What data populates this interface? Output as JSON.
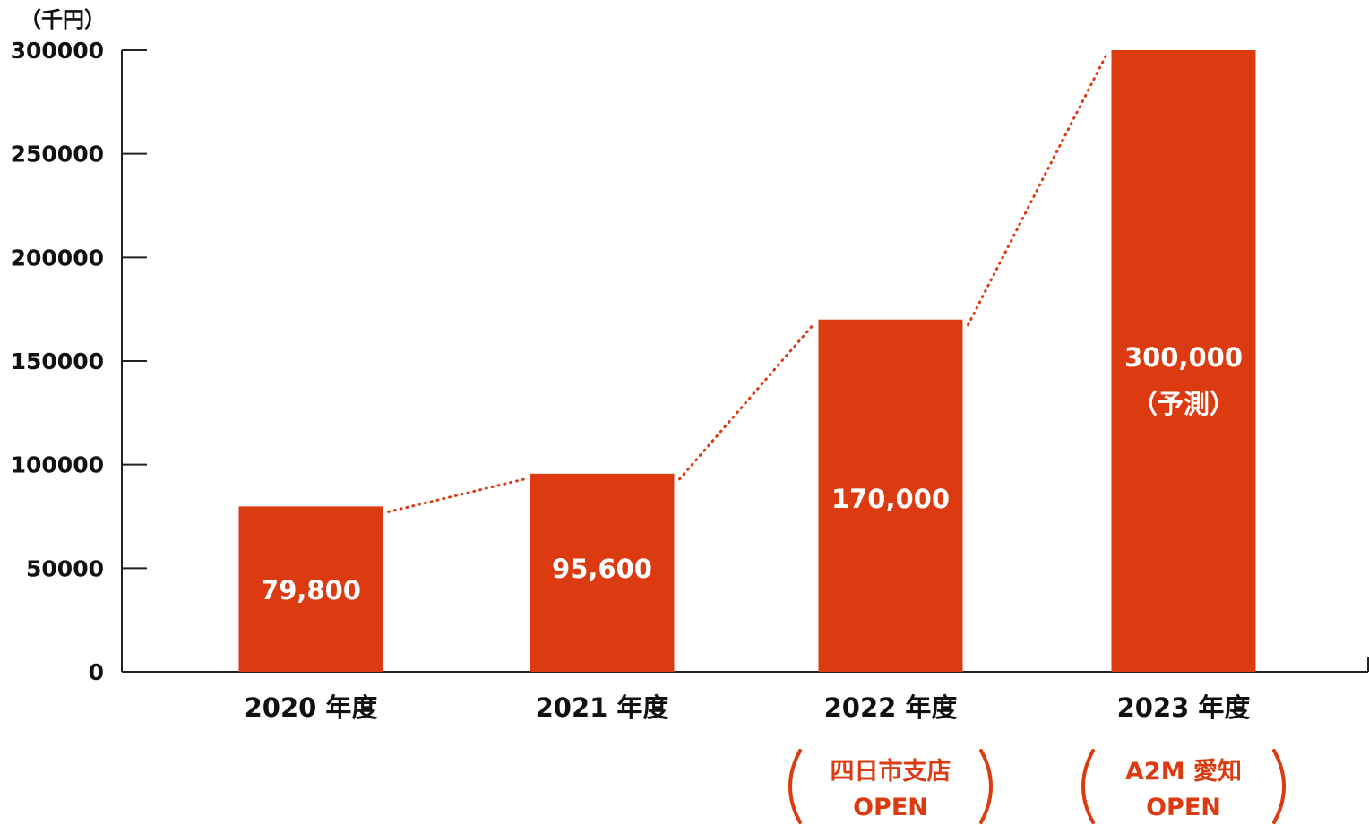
{
  "unit_label": "（千円）",
  "colors": {
    "bar": "#dc3a10",
    "axis": "#222222",
    "trend": "#dc3a10",
    "text": "#111111"
  },
  "chart_data": {
    "type": "bar",
    "categories": [
      "2020 年度",
      "2021 年度",
      "2022 年度",
      "2023 年度"
    ],
    "values": [
      79800,
      95600,
      170000,
      300000
    ],
    "bar_labels": [
      [
        "79,800"
      ],
      [
        "95,600"
      ],
      [
        "170,000"
      ],
      [
        "300,000",
        "（予測）"
      ]
    ],
    "annotations": [
      {
        "category": "2022 年度",
        "lines": [
          "四日市支店",
          "OPEN"
        ]
      },
      {
        "category": "2023 年度",
        "lines": [
          "A2M 愛知",
          "OPEN"
        ]
      }
    ],
    "ylim": [
      0,
      300000
    ],
    "yticks": [
      "0",
      "50000",
      "100000",
      "150000",
      "200000",
      "250000",
      "300000"
    ],
    "trend_line": "dotted",
    "grid": false,
    "legend": "none"
  }
}
